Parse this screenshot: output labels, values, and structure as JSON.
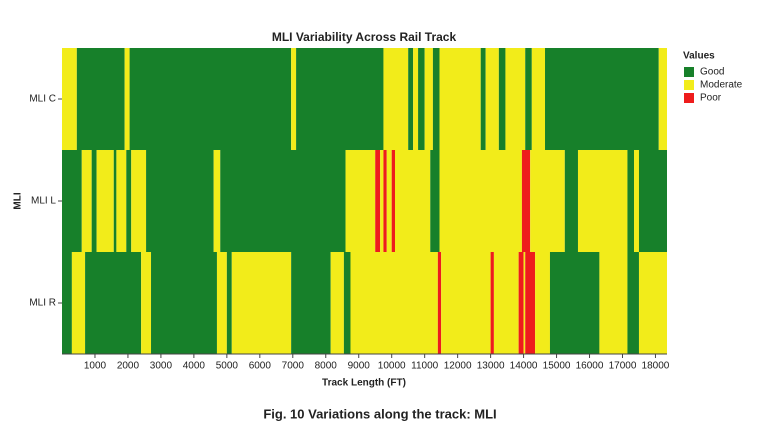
{
  "chart_data": {
    "type": "heatmap",
    "title": "MLI Variability Across Rail Track",
    "xlabel": "Track Length (FT)",
    "ylabel": "MLI",
    "caption": "Fig. 10    Variations along the track: MLI",
    "legend_title": "Values",
    "levels": [
      {
        "name": "Good",
        "color": "#17802a"
      },
      {
        "name": "Moderate",
        "color": "#f2ec1a"
      },
      {
        "name": "Poor",
        "color": "#ee1c1c"
      }
    ],
    "xlim": [
      0,
      18350
    ],
    "xticks": [
      1000,
      2000,
      3000,
      4000,
      5000,
      6000,
      7000,
      8000,
      9000,
      10000,
      11000,
      12000,
      13000,
      14000,
      15000,
      16000,
      17000,
      18000
    ],
    "series": [
      {
        "name": "MLI C",
        "x": [
          0,
          450,
          1900,
          2050,
          6950,
          7100,
          9750,
          10500,
          10650,
          10800,
          11000,
          11250,
          11450,
          12700,
          12850,
          13250,
          13450,
          14050,
          14250,
          14650,
          18100
        ],
        "values": [
          "Moderate",
          "Good",
          "Moderate",
          "Good",
          "Moderate",
          "Good",
          "Moderate",
          "Good",
          "Moderate",
          "Good",
          "Moderate",
          "Good",
          "Moderate",
          "Good",
          "Moderate",
          "Good",
          "Moderate",
          "Good",
          "Moderate",
          "Good",
          "Moderate"
        ]
      },
      {
        "name": "MLI L",
        "x": [
          0,
          600,
          900,
          1050,
          1570,
          1650,
          1950,
          2100,
          2550,
          4600,
          4800,
          8600,
          9500,
          9650,
          9750,
          9850,
          10000,
          10100,
          11170,
          11450,
          13950,
          14200,
          15250,
          15650,
          17150,
          17350,
          17500
        ],
        "values": [
          "Good",
          "Moderate",
          "Good",
          "Moderate",
          "Good",
          "Moderate",
          "Good",
          "Moderate",
          "Good",
          "Moderate",
          "Good",
          "Moderate",
          "Poor",
          "Moderate",
          "Poor",
          "Moderate",
          "Poor",
          "Moderate",
          "Good",
          "Moderate",
          "Poor",
          "Moderate",
          "Good",
          "Moderate",
          "Good",
          "Moderate",
          "Good"
        ]
      },
      {
        "name": "MLI R",
        "x": [
          0,
          300,
          700,
          2400,
          2700,
          4700,
          5000,
          5150,
          6950,
          8150,
          8550,
          8750,
          11400,
          11500,
          13000,
          13100,
          13850,
          14000,
          14050,
          14350,
          14800,
          16300,
          17150,
          17500
        ],
        "values": [
          "Good",
          "Moderate",
          "Good",
          "Moderate",
          "Good",
          "Moderate",
          "Good",
          "Moderate",
          "Good",
          "Moderate",
          "Good",
          "Moderate",
          "Poor",
          "Moderate",
          "Poor",
          "Moderate",
          "Poor",
          "Moderate",
          "Poor",
          "Moderate",
          "Good",
          "Moderate",
          "Good",
          "Moderate"
        ]
      }
    ]
  }
}
